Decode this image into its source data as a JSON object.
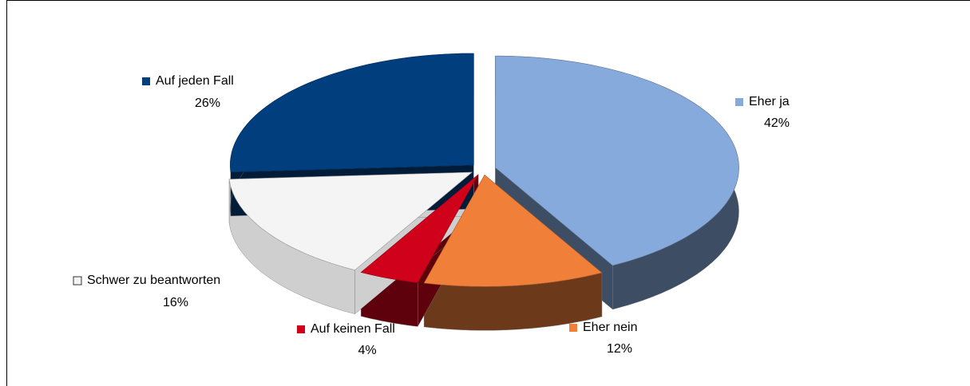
{
  "chart_data": {
    "type": "pie",
    "categories": [
      "Eher ja",
      "Eher nein",
      "Auf keinen Fall",
      "Schwer zu beantworten",
      "Auf jeden Fall"
    ],
    "values": [
      42,
      12,
      4,
      16,
      26
    ],
    "value_labels": [
      "42%",
      "12%",
      "4%",
      "16%",
      "26%"
    ],
    "colors": [
      "#87aadc",
      "#f07f3a",
      "#d0021b",
      "#f4f4f4",
      "#003e7e"
    ]
  }
}
